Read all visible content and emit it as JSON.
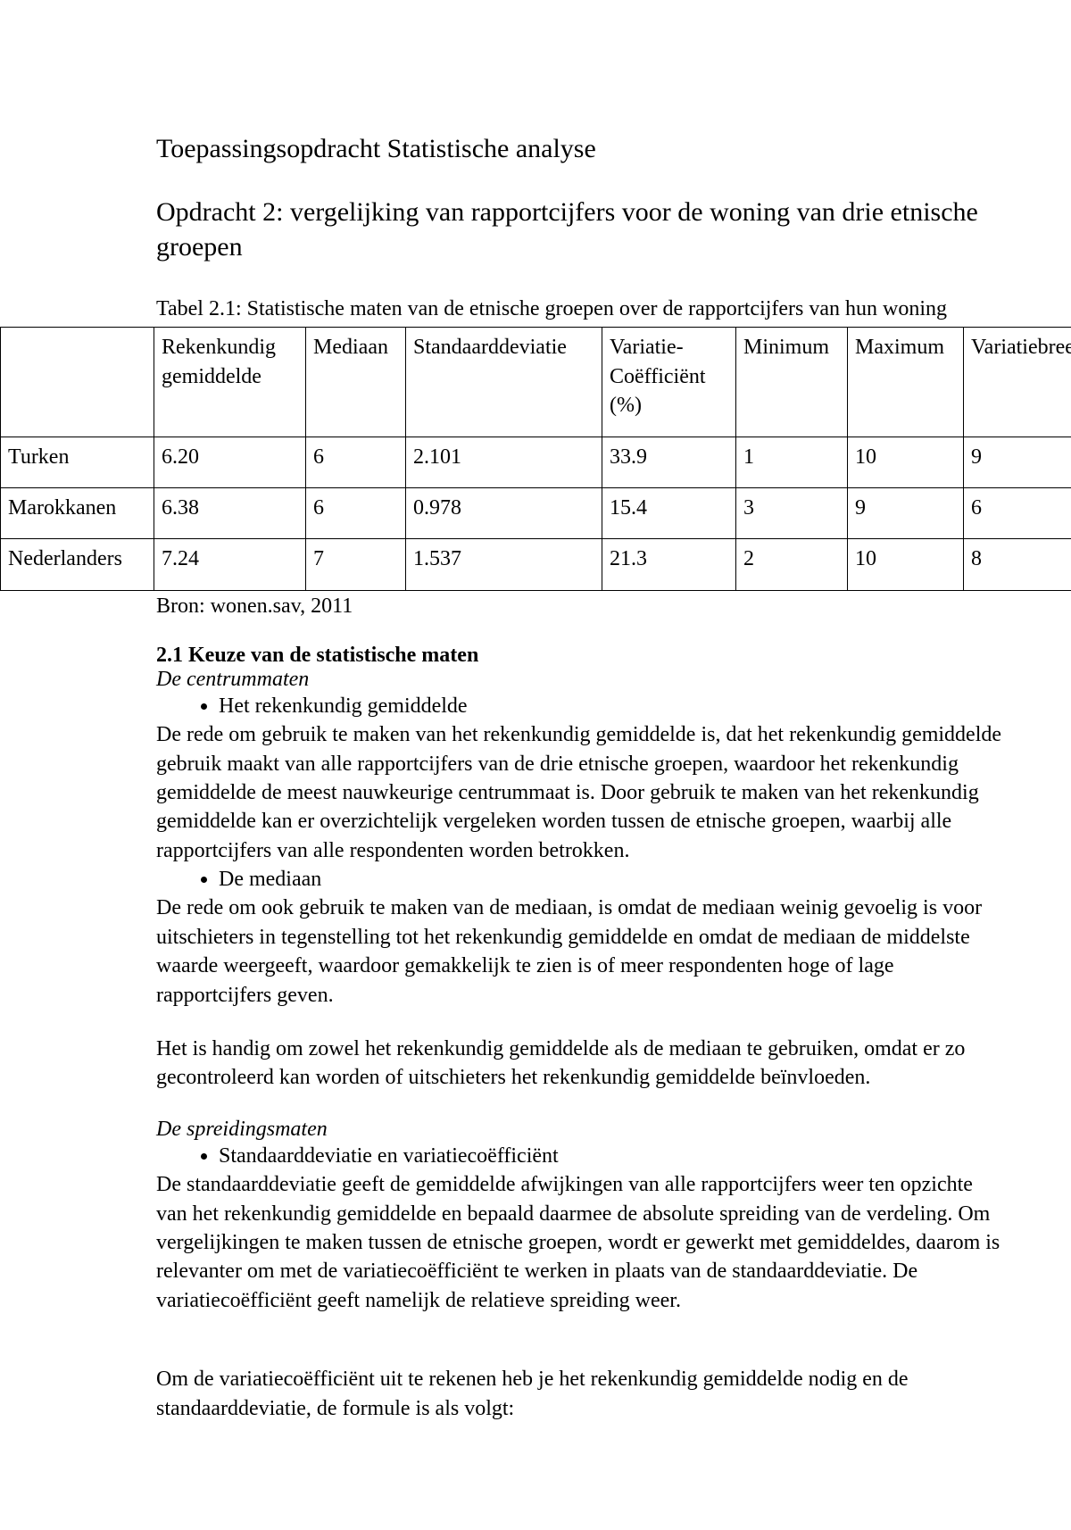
{
  "title": "Toepassingsopdracht Statistische analyse",
  "subtitle": "Opdracht 2: vergelijking van rapportcijfers voor de woning van drie etnische groepen",
  "table": {
    "caption": "Tabel 2.1: Statistische maten van de etnische groepen over de rapportcijfers van hun woning",
    "columns": {
      "rowhead": "",
      "mean": "Rekenkundig gemiddelde",
      "median": "Mediaan",
      "std": "Standaarddeviatie",
      "cv": "Variatie- Coëfficiënt (%)",
      "min": "Minimum",
      "max": "Maximum",
      "range": "Variatiebreedte"
    },
    "rows": [
      {
        "label": "Turken",
        "mean": "6.20",
        "median": "6",
        "std": "2.101",
        "cv": "33.9",
        "min": "1",
        "max": "10",
        "range": "9"
      },
      {
        "label": "Marokkanen",
        "mean": "6.38",
        "median": "6",
        "std": "0.978",
        "cv": "15.4",
        "min": "3",
        "max": "9",
        "range": "6"
      },
      {
        "label": "Nederlanders",
        "mean": "7.24",
        "median": "7",
        "std": "1.537",
        "cv": "21.3",
        "min": "2",
        "max": "10",
        "range": "8"
      }
    ],
    "source": "Bron: wonen.sav, 2011"
  },
  "section21": {
    "heading": "2.1 Keuze van de statistische maten",
    "sub1": "De centrummaten",
    "bullet1": "Het rekenkundig gemiddelde",
    "para1": "De rede om gebruik te maken van het rekenkundig gemiddelde is, dat het rekenkundig gemiddelde gebruik maakt van alle rapportcijfers van de drie etnische groepen, waardoor het rekenkundig gemiddelde de meest nauwkeurige centrummaat is. Door gebruik te maken van het rekenkundig gemiddelde kan er overzichtelijk vergeleken worden tussen de etnische groepen, waarbij alle rapportcijfers van alle respondenten worden betrokken.",
    "bullet2": "De mediaan",
    "para2": "De rede om ook gebruik te maken van de mediaan, is omdat de mediaan weinig gevoelig is voor uitschieters in tegenstelling tot het rekenkundig gemiddelde en omdat de mediaan de middelste waarde weergeeft, waardoor gemakkelijk te zien is of meer respondenten hoge of lage rapportcijfers geven.",
    "para3": "Het is handig om zowel het rekenkundig gemiddelde als de mediaan te gebruiken, omdat er zo gecontroleerd kan worden of uitschieters het rekenkundig gemiddelde beïnvloeden.",
    "sub2": "De spreidingsmaten",
    "bullet3": "Standaarddeviatie en variatiecoëfficiënt",
    "para4": "De standaarddeviatie geeft de gemiddelde afwijkingen van alle rapportcijfers weer ten opzichte van het rekenkundig gemiddelde en bepaald daarmee de absolute spreiding van de verdeling. Om vergelijkingen te maken tussen de etnische groepen, wordt er gewerkt met gemiddeldes, daarom is relevanter om met de variatiecoëfficiënt te werken in plaats van de standaarddeviatie. De variatiecoëfficiënt geeft namelijk de relatieve spreiding weer.",
    "para5": "Om de variatiecoëfficiënt uit te rekenen heb je het rekenkundig gemiddelde nodig en de standaarddeviatie, de formule is als volgt:"
  }
}
